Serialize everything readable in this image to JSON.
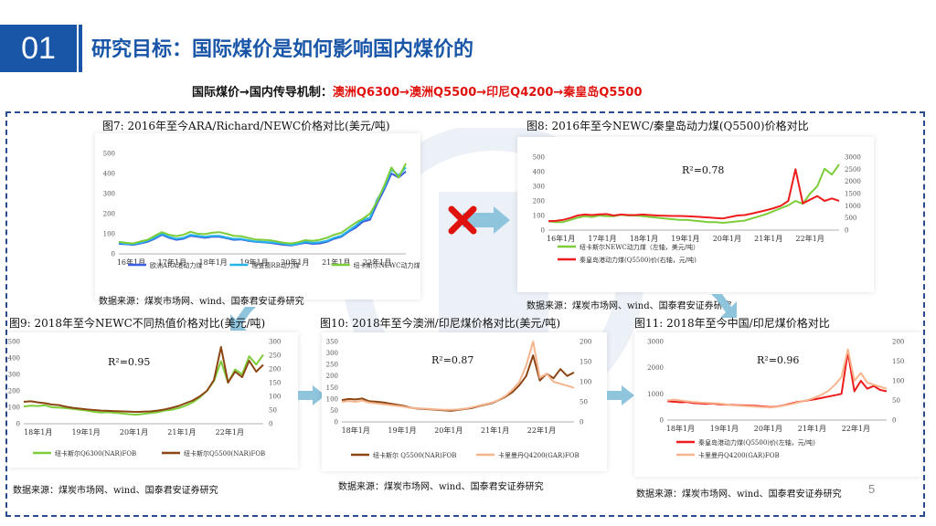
{
  "header": {
    "slide_number": "01",
    "title": "研究目标：国际煤价是如何影响国内煤价的",
    "subtitle_prefix": "国际煤价→国内传导机制：",
    "subtitle_path": "澳洲Q6300→澳洲Q5500→印尼Q4200→秦皇岛Q5500"
  },
  "colors": {
    "brand": "#1a56a8",
    "accent_red": "#e0120d",
    "arrow": "#8ec4dc"
  },
  "page_number": "5",
  "chart_data": [
    {
      "id": "fig7",
      "type": "line",
      "title": "图7:  2016年至今ARA/Richard/NEWC价格对比(美元/吨)",
      "source": "数据来源：煤炭市场网、wind、国泰君安证券研究",
      "x_ticks": [
        "16年1月",
        "17年1月",
        "18年1月",
        "19年1月",
        "20年1月",
        "21年1月",
        "22年1月"
      ],
      "ylim": [
        0,
        500
      ],
      "y_ticks": [
        "0",
        "100",
        "200",
        "300",
        "400",
        "500"
      ],
      "legend_position": "bottom",
      "series": [
        {
          "name": "欧洲ARA港动力煤",
          "color": "#3b5fe0",
          "axis": "left",
          "values": [
            50,
            48,
            45,
            52,
            60,
            75,
            95,
            80,
            70,
            75,
            90,
            85,
            80,
            85,
            85,
            78,
            70,
            72,
            65,
            60,
            58,
            55,
            50,
            45,
            42,
            48,
            55,
            50,
            52,
            60,
            75,
            85,
            110,
            130,
            160,
            170,
            250,
            320,
            400,
            380,
            410
          ]
        },
        {
          "name": "理查德RB动力煤",
          "color": "#26b5e8",
          "axis": "left",
          "values": [
            55,
            50,
            48,
            55,
            65,
            80,
            100,
            85,
            75,
            80,
            95,
            90,
            85,
            90,
            90,
            82,
            75,
            75,
            68,
            62,
            60,
            58,
            55,
            50,
            45,
            50,
            60,
            55,
            58,
            65,
            80,
            90,
            115,
            140,
            170,
            180,
            270,
            330,
            420,
            390,
            430
          ]
        },
        {
          "name": "纽卡斯尔NEWC动力煤",
          "color": "#7dcd3a",
          "axis": "left",
          "values": [
            60,
            55,
            52,
            62,
            70,
            90,
            108,
            95,
            88,
            95,
            110,
            100,
            98,
            105,
            108,
            100,
            90,
            88,
            80,
            72,
            70,
            68,
            62,
            55,
            52,
            58,
            68,
            65,
            70,
            80,
            95,
            105,
            130,
            155,
            175,
            200,
            260,
            340,
            430,
            380,
            450
          ]
        }
      ]
    },
    {
      "id": "fig8",
      "type": "line",
      "title": "图8:  2016年至今NEWC/秦皇岛动力煤(Q5500)价格对比",
      "source": "数据来源：煤炭市场网、wind、国泰君安证券研究",
      "annotation": "R²=0.78",
      "x_ticks": [
        "16年1月",
        "17年1月",
        "18年1月",
        "19年1月",
        "20年1月",
        "21年1月",
        "22年1月"
      ],
      "ylim": [
        0,
        500
      ],
      "y_ticks": [
        "0",
        "100",
        "200",
        "300",
        "400",
        "500"
      ],
      "y2lim": [
        0,
        3000
      ],
      "y2_ticks": [
        "0",
        "500",
        "1000",
        "1500",
        "2000",
        "2500",
        "3000"
      ],
      "legend_position": "bottom",
      "series": [
        {
          "name": "纽卡斯尔NEWC动力煤（左轴，美元/吨）",
          "color": "#7dcd3a",
          "axis": "left",
          "values": [
            60,
            55,
            55,
            70,
            85,
            95,
            90,
            100,
            95,
            95,
            105,
            100,
            100,
            95,
            90,
            85,
            80,
            75,
            70,
            70,
            65,
            60,
            55,
            55,
            50,
            55,
            60,
            65,
            80,
            95,
            110,
            130,
            150,
            170,
            200,
            180,
            250,
            300,
            420,
            380,
            450
          ]
        },
        {
          "name": "秦皇岛港动力煤(Q5500)价(右轴，元/吨)",
          "color": "#ee1c1c",
          "axis": "right",
          "values": [
            370,
            380,
            420,
            500,
            600,
            640,
            620,
            650,
            660,
            600,
            640,
            620,
            620,
            640,
            620,
            600,
            590,
            580,
            580,
            570,
            560,
            540,
            520,
            500,
            480,
            540,
            600,
            620,
            680,
            750,
            820,
            900,
            1000,
            1200,
            2500,
            1100,
            1250,
            1400,
            1200,
            1300,
            1200
          ]
        }
      ]
    },
    {
      "id": "fig9",
      "type": "line",
      "title": "图9:  2018年至今NEWC不同热值价格对比(美元/吨)",
      "source": "数据来源：煤炭市场网、wind、国泰君安证券研究",
      "annotation": "R²=0.95",
      "x_ticks": [
        "18年1月",
        "19年1月",
        "20年1月",
        "21年1月",
        "22年1月"
      ],
      "ylim": [
        0,
        500
      ],
      "y_ticks": [
        "0",
        "100",
        "200",
        "300",
        "400",
        "500"
      ],
      "y2lim": [
        0,
        300
      ],
      "y2_ticks": [
        "0",
        "50",
        "100",
        "150",
        "200",
        "250",
        "300"
      ],
      "legend_position": "bottom",
      "series": [
        {
          "name": "纽卡斯尔Q6300(NAR)FOB",
          "color": "#7dcd3a",
          "axis": "left",
          "values": [
            105,
            110,
            108,
            112,
            100,
            98,
            95,
            90,
            85,
            80,
            72,
            68,
            70,
            66,
            62,
            58,
            55,
            60,
            65,
            70,
            80,
            85,
            95,
            110,
            130,
            160,
            200,
            260,
            380,
            250,
            330,
            300,
            410,
            360,
            420
          ]
        },
        {
          "name": "纽卡斯尔Q5500(NAR)FOB",
          "color": "#8b4513",
          "axis": "right",
          "values": [
            80,
            82,
            78,
            75,
            70,
            68,
            62,
            58,
            55,
            52,
            50,
            48,
            47,
            46,
            45,
            44,
            43,
            44,
            45,
            48,
            52,
            58,
            65,
            75,
            85,
            100,
            120,
            160,
            280,
            150,
            190,
            170,
            230,
            190,
            215
          ]
        }
      ]
    },
    {
      "id": "fig10",
      "type": "line",
      "title": "图10:  2018年至今澳洲/印尼煤价格对比(美元/吨)",
      "source": "数据来源：煤炭市场网、wind、国泰君安证券研究",
      "annotation": "R²=0.87",
      "x_ticks": [
        "18年1月",
        "19年1月",
        "20年1月",
        "21年1月",
        "22年1月"
      ],
      "ylim": [
        0,
        350
      ],
      "y_ticks": [
        "0",
        "50",
        "100",
        "150",
        "200",
        "250",
        "300",
        "350"
      ],
      "y2lim": [
        0,
        200
      ],
      "y2_ticks": [
        "0",
        "50",
        "100",
        "150",
        "200"
      ],
      "legend_position": "bottom",
      "series": [
        {
          "name": "纽卡斯尔 Q5500(NAR)FOB",
          "color": "#8b4513",
          "axis": "left",
          "values": [
            95,
            100,
            98,
            102,
            90,
            88,
            85,
            80,
            75,
            70,
            62,
            58,
            56,
            55,
            52,
            50,
            48,
            52,
            56,
            60,
            68,
            75,
            82,
            95,
            110,
            130,
            160,
            200,
            290,
            180,
            210,
            190,
            230,
            200,
            215
          ]
        },
        {
          "name": "卡里曼丹Q4200(GAR)FOB",
          "color": "#f5b48c",
          "axis": "right",
          "values": [
            50,
            52,
            50,
            53,
            48,
            46,
            44,
            42,
            40,
            38,
            35,
            34,
            33,
            32,
            31,
            30,
            30,
            31,
            33,
            36,
            40,
            44,
            48,
            55,
            65,
            80,
            100,
            140,
            200,
            110,
            120,
            100,
            95,
            90,
            85
          ]
        }
      ]
    },
    {
      "id": "fig11",
      "type": "line",
      "title": "图11:  2018年至今中国/印尼煤价格对比",
      "source": "数据来源：煤炭市场网、wind、国泰君安证券研究",
      "annotation": "R²=0.96",
      "x_ticks": [
        "18年1月",
        "19年1月",
        "20年1月",
        "21年1月",
        "22年1月"
      ],
      "ylim": [
        0,
        3000
      ],
      "y_ticks": [
        "0",
        "1000",
        "2000",
        "3000"
      ],
      "y2lim": [
        0,
        200
      ],
      "y2_ticks": [
        "0",
        "50",
        "100",
        "150",
        "200"
      ],
      "legend_position": "bottom",
      "series": [
        {
          "name": "秦皇岛港动力煤(Q5500)价(左轴，元/吨)",
          "color": "#ee1c1c",
          "axis": "left",
          "values": [
            720,
            700,
            680,
            690,
            650,
            640,
            620,
            630,
            600,
            590,
            580,
            570,
            560,
            550,
            540,
            520,
            500,
            520,
            560,
            620,
            680,
            720,
            760,
            800,
            850,
            900,
            950,
            1000,
            2600,
            1100,
            1500,
            1200,
            1300,
            1150,
            1100
          ]
        },
        {
          "name": "卡里曼丹Q4200(GAR)FOB",
          "color": "#f7b48d",
          "axis": "right",
          "values": [
            50,
            52,
            50,
            48,
            46,
            45,
            44,
            43,
            42,
            40,
            38,
            37,
            36,
            35,
            34,
            33,
            32,
            34,
            37,
            40,
            44,
            48,
            52,
            58,
            65,
            75,
            90,
            110,
            180,
            100,
            120,
            95,
            90,
            85,
            80
          ]
        }
      ]
    }
  ]
}
